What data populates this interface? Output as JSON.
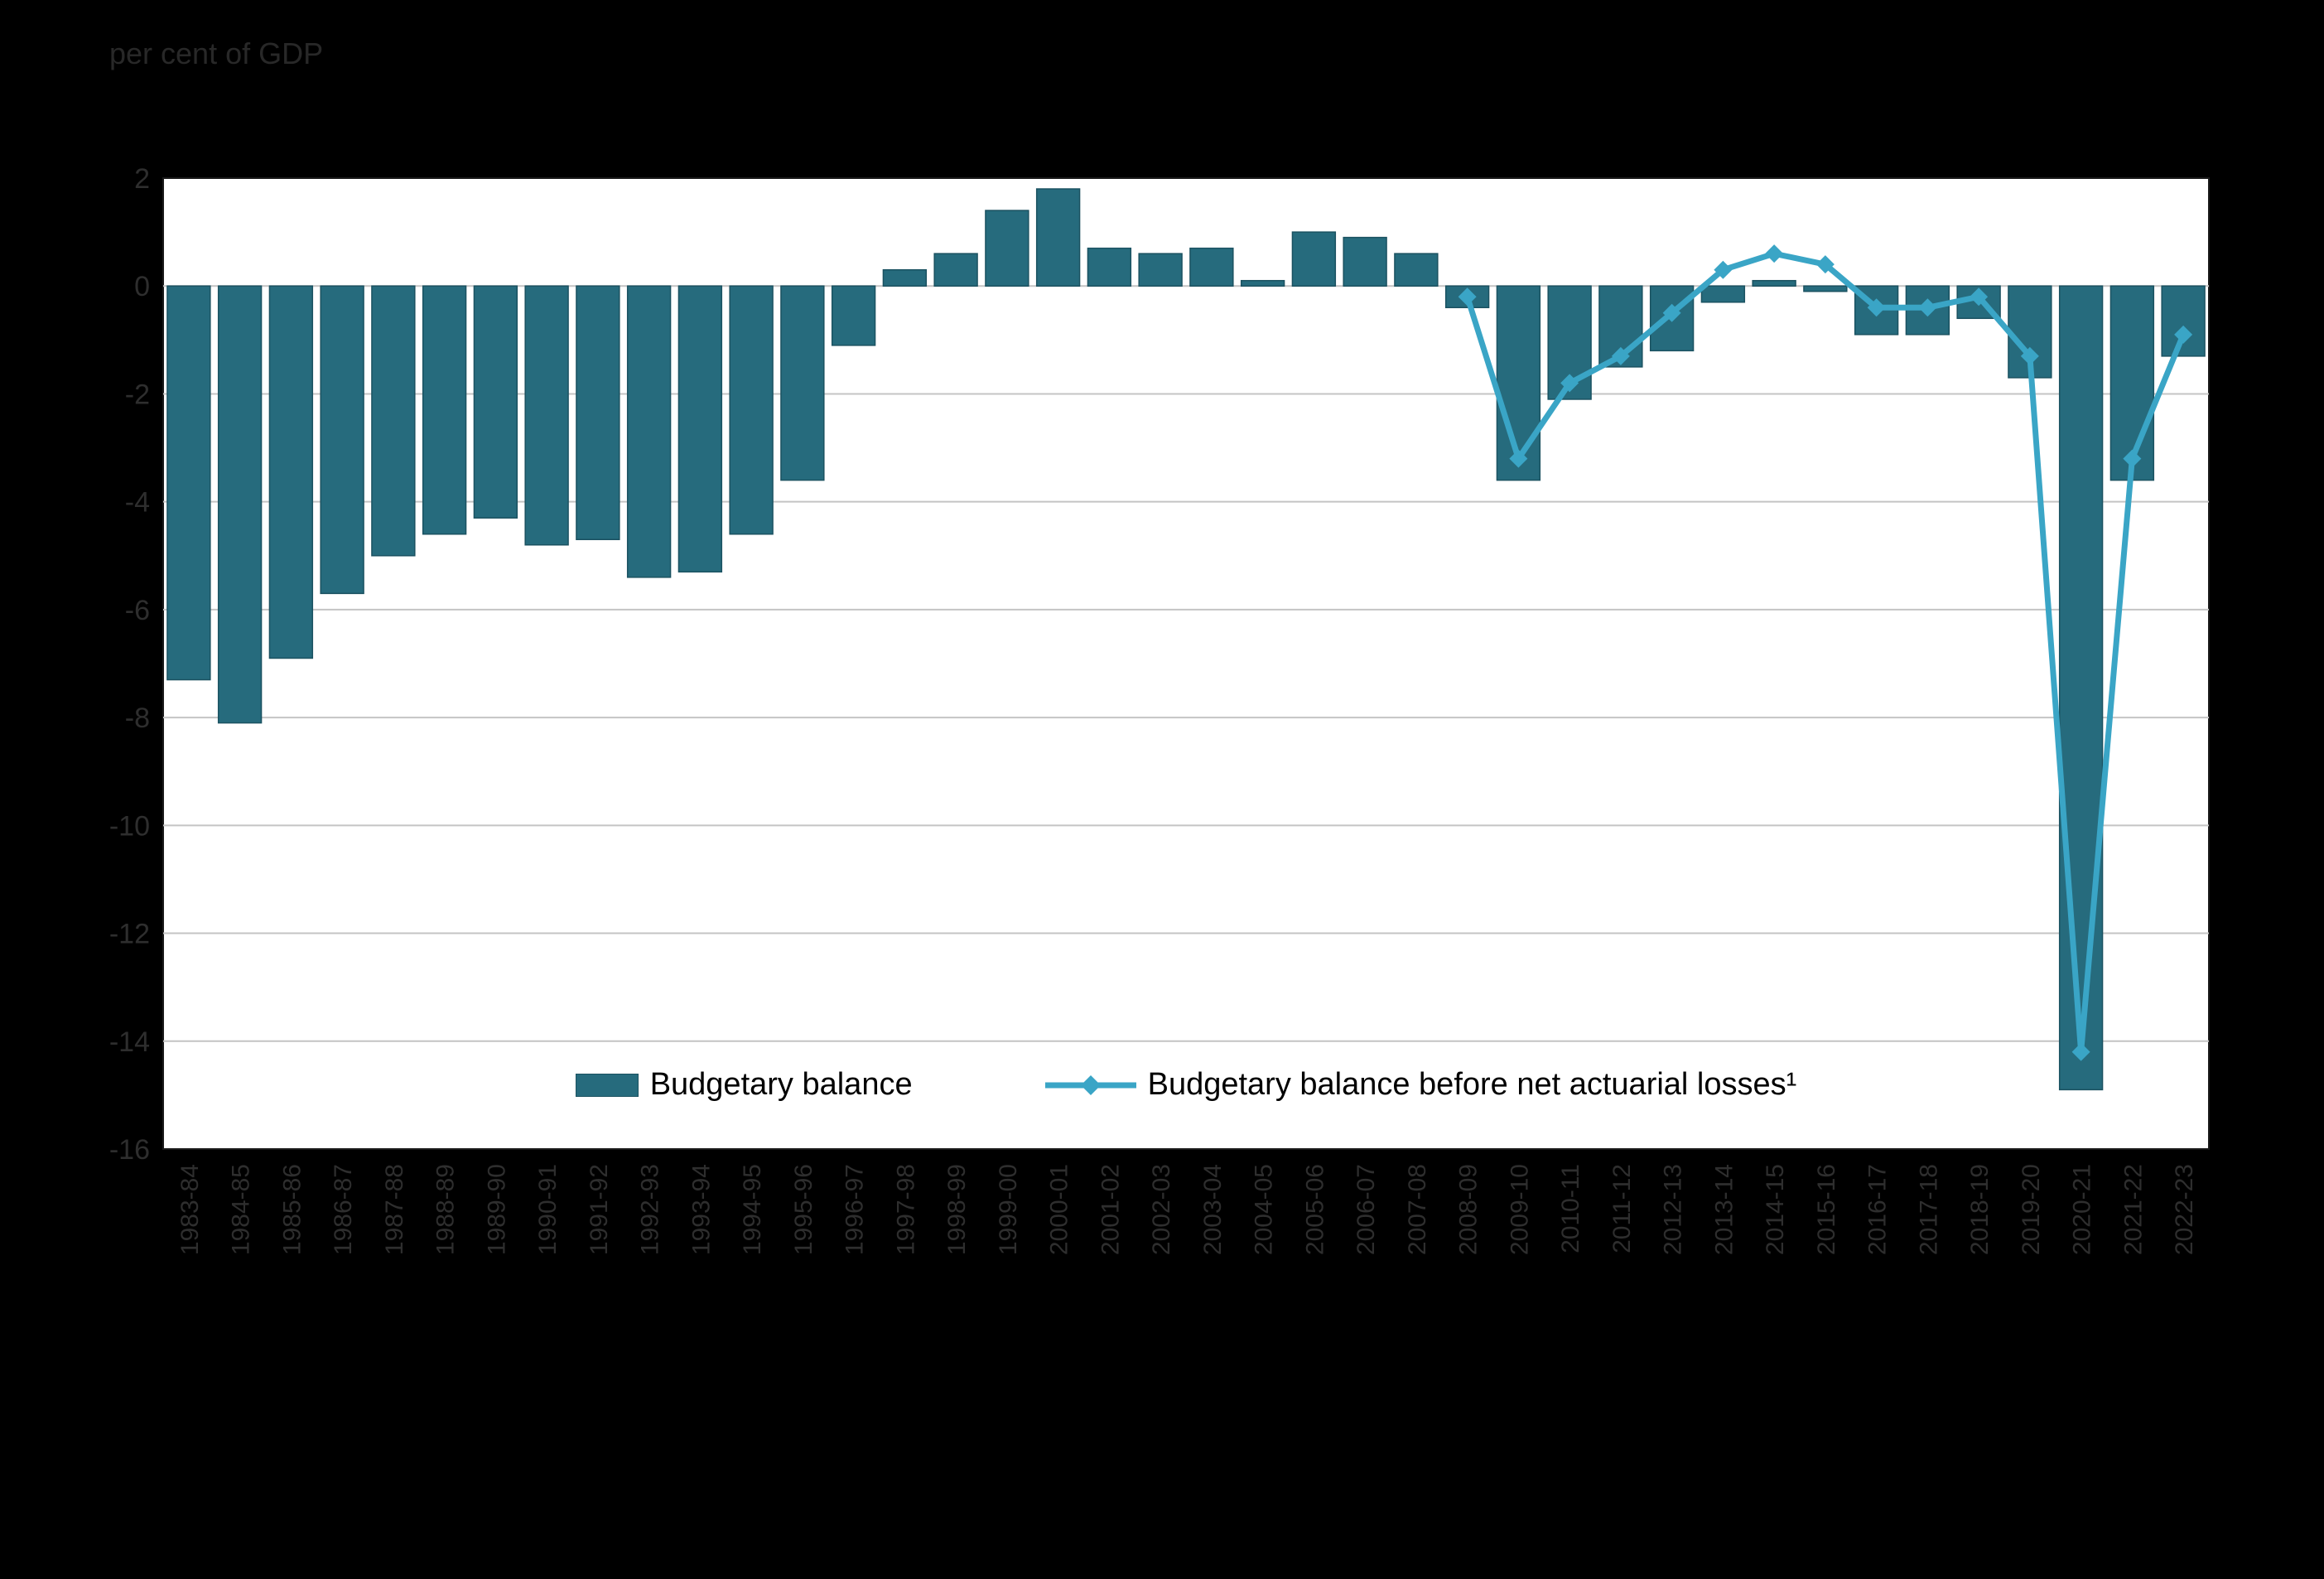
{
  "title": "per cent of GDP",
  "legend": {
    "bar_label": "Budgetary balance",
    "line_label": "Budgetary balance before net actuarial losses¹"
  },
  "colors": {
    "page_bg": "#000000",
    "plot_bg": "#ffffff",
    "plot_border": "#1a1a1a",
    "grid": "#c4c4c4",
    "axis_text": "#2e2e2e",
    "legend_text": "#000000",
    "bar_fill": "#266b7d",
    "bar_stroke": "#1b5261",
    "line": "#3aa5c6"
  },
  "chart_data": {
    "type": "bar",
    "title": "per cent of GDP",
    "xlabel": "",
    "ylabel": "per cent of GDP",
    "ylim": [
      -16,
      2
    ],
    "ytick_step": 2,
    "grid": true,
    "legend_position": "inside-bottom-center",
    "categories": [
      "1983-84",
      "1984-85",
      "1985-86",
      "1986-87",
      "1987-88",
      "1988-89",
      "1989-90",
      "1990-91",
      "1991-92",
      "1992-93",
      "1993-94",
      "1994-95",
      "1995-96",
      "1996-97",
      "1997-98",
      "1998-99",
      "1999-00",
      "2000-01",
      "2001-02",
      "2002-03",
      "2003-04",
      "2004-05",
      "2005-06",
      "2006-07",
      "2007-08",
      "2008-09",
      "2009-10",
      "2010-11",
      "2011-12",
      "2012-13",
      "2013-14",
      "2014-15",
      "2015-16",
      "2016-17",
      "2017-18",
      "2018-19",
      "2019-20",
      "2020-21",
      "2021-22",
      "2022-23"
    ],
    "series": [
      {
        "name": "Budgetary balance",
        "type": "bar",
        "values": [
          -7.3,
          -8.1,
          -6.9,
          -5.7,
          -5.0,
          -4.6,
          -4.3,
          -4.8,
          -4.7,
          -5.4,
          -5.3,
          -4.6,
          -3.6,
          -1.1,
          0.3,
          0.6,
          1.4,
          1.8,
          0.7,
          0.6,
          0.7,
          0.1,
          1.0,
          0.9,
          0.6,
          -0.4,
          -3.6,
          -2.1,
          -1.5,
          -1.2,
          -0.3,
          0.1,
          -0.1,
          -0.9,
          -0.9,
          -0.6,
          -1.7,
          -14.9,
          -3.6,
          -1.3
        ]
      },
      {
        "name": "Budgetary balance before net actuarial losses",
        "type": "line",
        "marker": "diamond",
        "values": [
          null,
          null,
          null,
          null,
          null,
          null,
          null,
          null,
          null,
          null,
          null,
          null,
          null,
          null,
          null,
          null,
          null,
          null,
          null,
          null,
          null,
          null,
          null,
          null,
          null,
          -0.2,
          -3.2,
          -1.8,
          -1.3,
          -0.5,
          0.3,
          0.6,
          0.4,
          -0.4,
          -0.4,
          -0.2,
          -1.3,
          -14.2,
          -3.2,
          -0.9
        ]
      }
    ]
  }
}
